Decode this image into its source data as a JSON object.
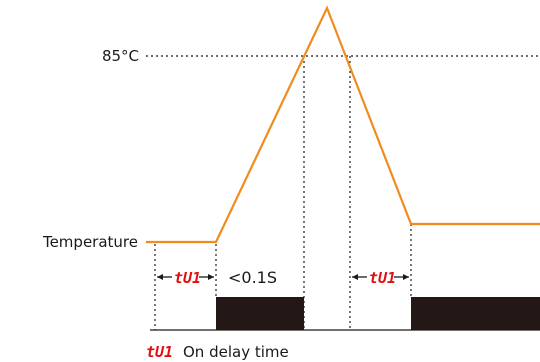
{
  "labels": {
    "threshold": "85°C",
    "temperature": "Temperature",
    "fast_window": "<0.1S",
    "delay_code": "tU1",
    "legend_code": "tU1",
    "legend_text": "On delay time"
  },
  "colors": {
    "temperature_line": "#f08c1e",
    "output_bar": "#231815",
    "dotted": "#1a1a1a",
    "code": "#e01010",
    "text": "#1a1a1a"
  }
}
